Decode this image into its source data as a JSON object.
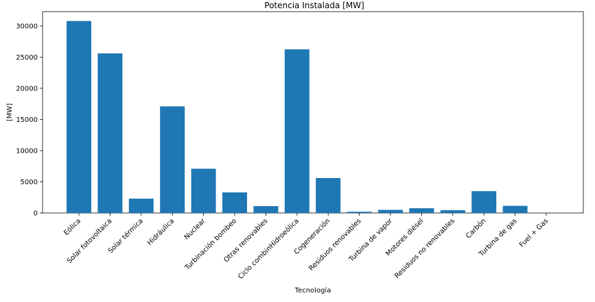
{
  "chart_data": {
    "type": "bar",
    "title": "Potencia Instalada [MW]",
    "xlabel": "Tecnología",
    "ylabel": "[MW]",
    "ylim": [
      0,
      32300
    ],
    "yticks": [
      0,
      5000,
      10000,
      15000,
      20000,
      25000,
      30000
    ],
    "grid": false,
    "bar_color": "#1f77b4",
    "categories": [
      "Eólica",
      "Solar fotovoltaica",
      "Solar térmica",
      "Hidráulica",
      "Nuclear",
      "Turbinación bombeo",
      "Otras renovables",
      "Ciclo combinHidroeólica",
      "Cogeneración",
      "Residuos renovables",
      "Turbina de vapor",
      "Motores diésel",
      "Residuos no renovables",
      "Carbón",
      "Turbina de gas",
      "Fuel + Gas"
    ],
    "values": [
      30800,
      25600,
      2300,
      17100,
      7100,
      3300,
      1100,
      26250,
      5600,
      200,
      500,
      760,
      450,
      3500,
      1150,
      0
    ]
  }
}
